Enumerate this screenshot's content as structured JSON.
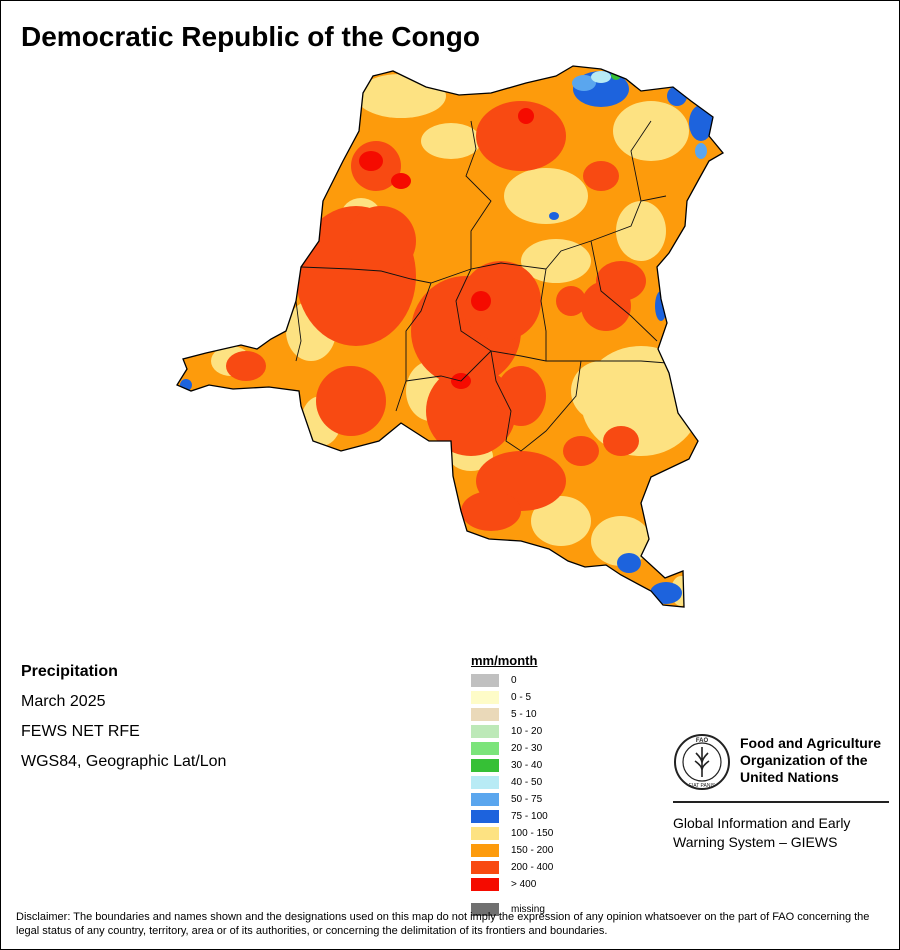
{
  "title": "Democratic Republic of the Congo",
  "info": {
    "variable": "Precipitation",
    "period": "March 2025",
    "source": "FEWS NET RFE",
    "projection": "WGS84, Geographic Lat/Lon"
  },
  "legend": {
    "title": "mm/month",
    "items": [
      {
        "label": "0",
        "color": "#c0c0c0"
      },
      {
        "label": "0 - 5",
        "color": "#fefcc8"
      },
      {
        "label": "5 - 10",
        "color": "#ead9b9"
      },
      {
        "label": "10 - 20",
        "color": "#bde9b8"
      },
      {
        "label": "20 - 30",
        "color": "#7be47a"
      },
      {
        "label": "30 - 40",
        "color": "#36c036"
      },
      {
        "label": "40 - 50",
        "color": "#b8ebf5"
      },
      {
        "label": "50 - 75",
        "color": "#5aa6ee"
      },
      {
        "label": "75 - 100",
        "color": "#1d63dd"
      },
      {
        "label": "100 - 150",
        "color": "#fde282"
      },
      {
        "label": "150 - 200",
        "color": "#fd9b0c"
      },
      {
        "label": "200 - 400",
        "color": "#f84a12"
      },
      {
        "label": "> 400",
        "color": "#f50b00"
      }
    ],
    "missing": {
      "label": "missing",
      "color": "#707070"
    }
  },
  "organization": {
    "name_line1": "Food and Agriculture",
    "name_line2": "Organization of the",
    "name_line3": "United Nations",
    "emblem_top": "FAO",
    "emblem_bottom": "FIAT PANIS",
    "program_line1": "Global Information and Early",
    "program_line2": "Warning System – GIEWS"
  },
  "disclaimer": "Disclaimer: The boundaries and names shown and the designations used on this map do not imply the expression of any opinion whatsoever on the part of FAO concerning the legal status of any country, territory, area or of its authorities, or concerning the delimitation of its frontiers and boundaries."
}
